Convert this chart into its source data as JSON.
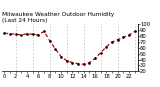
{
  "title_line1": "Milwaukee Weather Outdoor Humidity",
  "title_line2": "(Last 24 Hours)",
  "x_values": [
    0,
    1,
    2,
    3,
    4,
    5,
    6,
    7,
    8,
    9,
    10,
    11,
    12,
    13,
    14,
    15,
    16,
    17,
    18,
    19,
    20,
    21,
    22,
    23
  ],
  "y_values": [
    85,
    84,
    83,
    82,
    84,
    83,
    82,
    88,
    72,
    58,
    45,
    38,
    35,
    33,
    32,
    35,
    42,
    52,
    62,
    70,
    74,
    78,
    82,
    88
  ],
  "line_color": "#cc0000",
  "marker_color": "#000000",
  "bg_color": "#ffffff",
  "plot_bg": "#ffffff",
  "grid_color": "#aaaaaa",
  "ylim": [
    20,
    100
  ],
  "xlim": [
    -0.5,
    23.5
  ],
  "ytick_values": [
    20,
    30,
    40,
    50,
    60,
    70,
    80,
    90,
    100
  ],
  "ytick_labels": [
    "20",
    "30",
    "40",
    "50",
    "60",
    "70",
    "80",
    "90",
    "100"
  ],
  "grid_x_positions": [
    2,
    5,
    8,
    11,
    14,
    17,
    20,
    23
  ],
  "title_fontsize": 4.2,
  "tick_fontsize": 3.8,
  "linewidth": 0.9,
  "markersize": 1.8
}
